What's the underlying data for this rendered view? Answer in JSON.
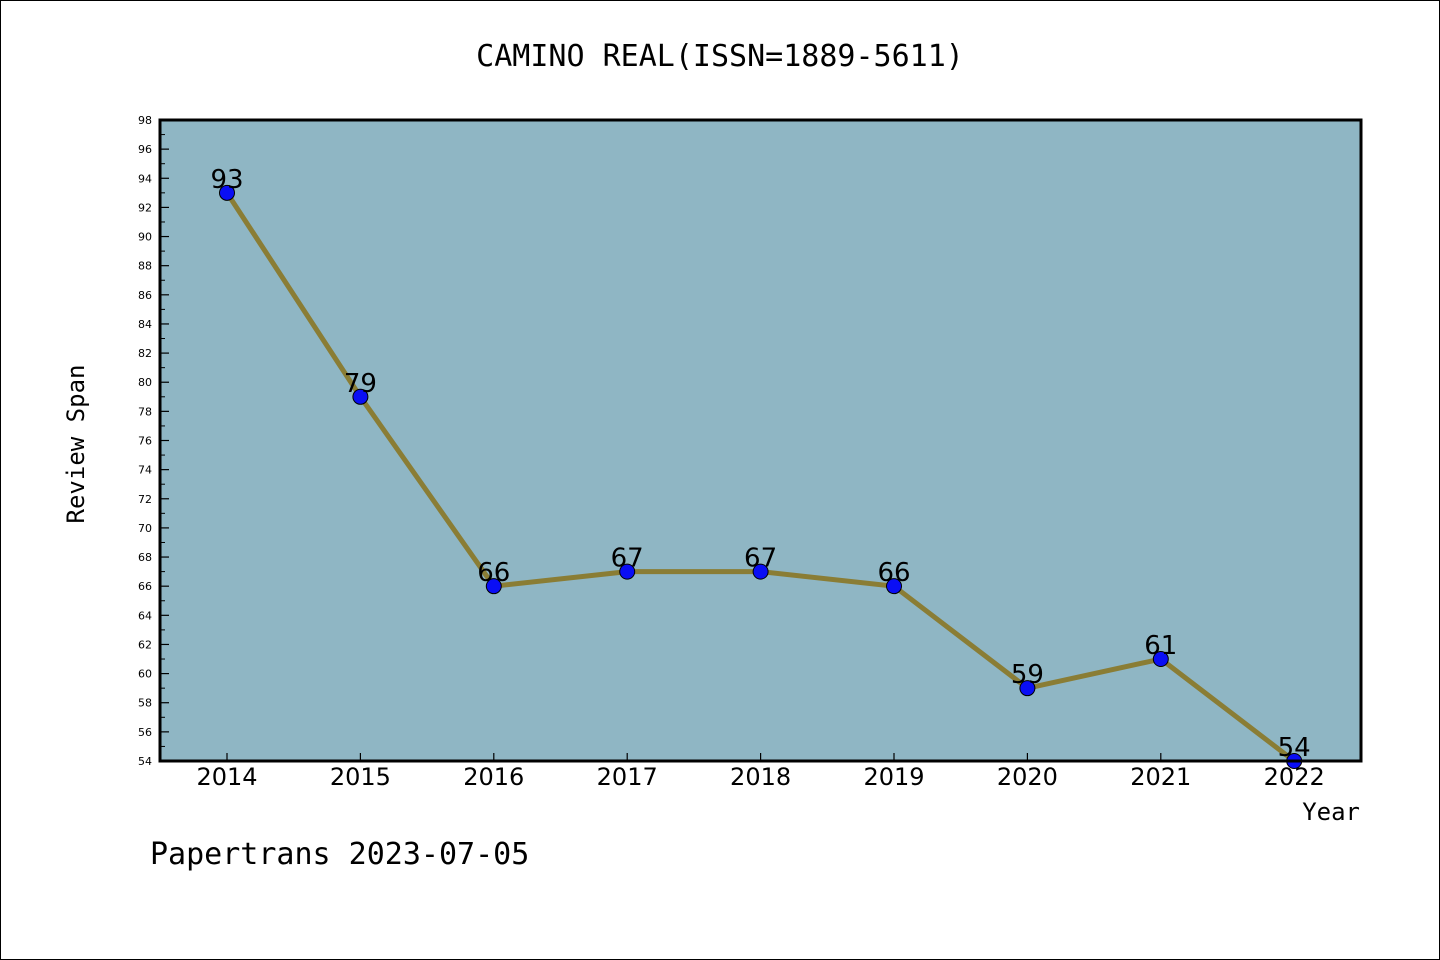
{
  "chart_data": {
    "type": "line",
    "title": "CAMINO REAL(ISSN=1889-5611)",
    "xlabel": "Year",
    "ylabel": "Review Span",
    "categories": [
      "2014",
      "2015",
      "2016",
      "2017",
      "2018",
      "2019",
      "2020",
      "2021",
      "2022"
    ],
    "series": [
      {
        "values": [
          93,
          79,
          66,
          67,
          67,
          66,
          59,
          61,
          54
        ]
      }
    ],
    "data_labels": [
      "93",
      "79",
      "66",
      "67",
      "67",
      "66",
      "59",
      "61",
      "54"
    ],
    "ylim": [
      54,
      98
    ],
    "ytick_step": 2,
    "yticks": [
      "54",
      "56",
      "58",
      "60",
      "62",
      "64",
      "66",
      "68",
      "70",
      "72",
      "74",
      "76",
      "78",
      "80",
      "82",
      "84",
      "86",
      "88",
      "90",
      "92",
      "94",
      "96",
      "98"
    ],
    "grid": false,
    "legend": "none",
    "colors": {
      "plot_background": "#8fb6c4",
      "line": "#8a7d35",
      "marker": "#0a0ef5"
    }
  },
  "footer": "Papertrans 2023-07-05"
}
